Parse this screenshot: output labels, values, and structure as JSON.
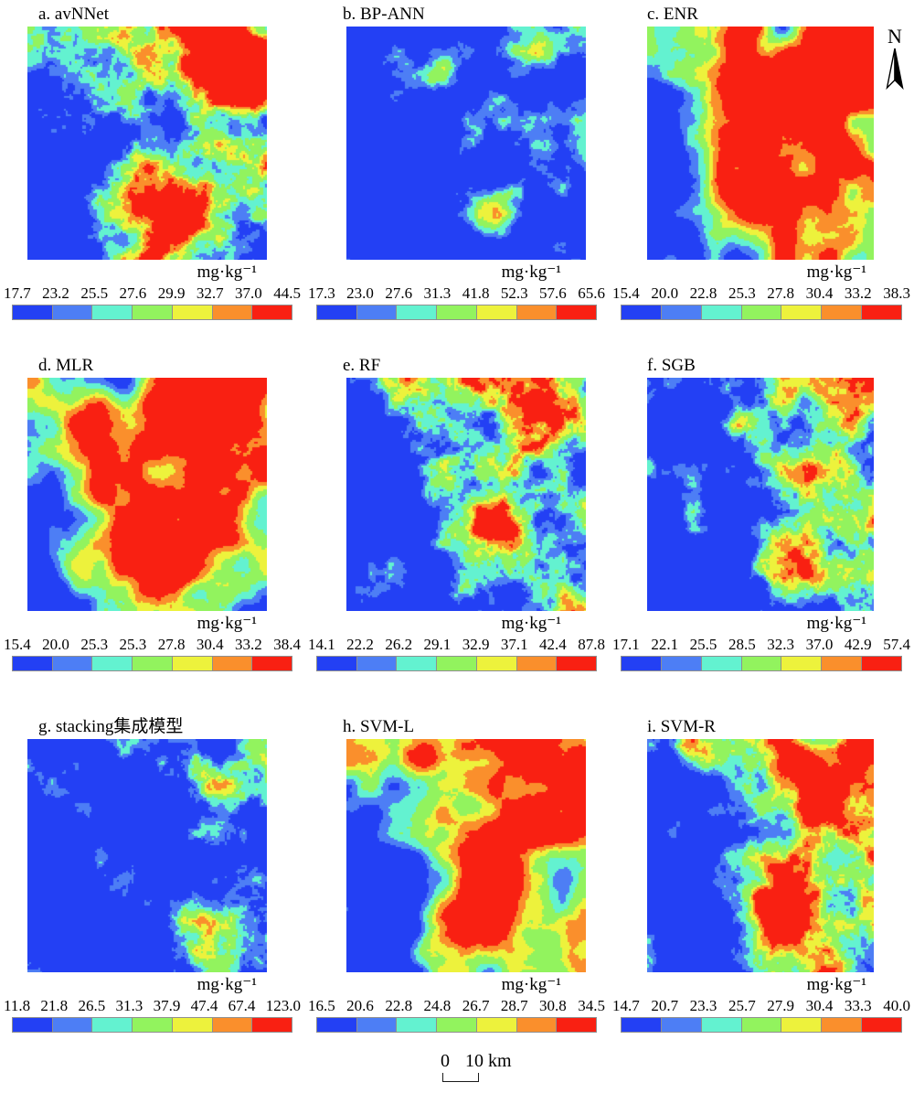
{
  "figure": {
    "unit_label": "mg·kg⁻¹",
    "north_label": "N",
    "scalebar": {
      "zero": "0",
      "label": "10 km"
    }
  },
  "colorbar_colors": [
    "#2340f4",
    "#4d7ef5",
    "#63f2d0",
    "#92f35e",
    "#edf23c",
    "#fa8f2c",
    "#f92012"
  ],
  "panels": [
    {
      "id": "a",
      "title": "a. avNNet",
      "breaks": [
        "17.7",
        "23.2",
        "25.5",
        "27.6",
        "29.9",
        "32.7",
        "37.0",
        "44.5"
      ]
    },
    {
      "id": "b",
      "title": "b. BP-ANN",
      "breaks": [
        "17.3",
        "23.0",
        "27.6",
        "31.3",
        "41.8",
        "52.3",
        "57.6",
        "65.6"
      ]
    },
    {
      "id": "c",
      "title": "c. ENR",
      "breaks": [
        "15.4",
        "20.0",
        "22.8",
        "25.3",
        "27.8",
        "30.4",
        "33.2",
        "38.3"
      ]
    },
    {
      "id": "d",
      "title": "d. MLR",
      "breaks": [
        "15.4",
        "20.0",
        "25.3",
        "25.3",
        "27.8",
        "30.4",
        "33.2",
        "38.4"
      ]
    },
    {
      "id": "e",
      "title": "e. RF",
      "breaks": [
        "14.1",
        "22.2",
        "26.2",
        "29.1",
        "32.9",
        "37.1",
        "42.4",
        "87.8"
      ]
    },
    {
      "id": "f",
      "title": "f. SGB",
      "breaks": [
        "17.1",
        "22.1",
        "25.5",
        "28.5",
        "32.3",
        "37.0",
        "42.9",
        "57.4"
      ]
    },
    {
      "id": "g",
      "title": "g. stacking集成模型",
      "breaks": [
        "11.8",
        "21.8",
        "26.5",
        "31.3",
        "37.9",
        "47.4",
        "67.4",
        "123.0"
      ]
    },
    {
      "id": "h",
      "title": "h. SVM-L",
      "breaks": [
        "16.5",
        "20.6",
        "22.8",
        "24.8",
        "26.7",
        "28.7",
        "30.8",
        "34.5"
      ]
    },
    {
      "id": "i",
      "title": "i. SVM-R",
      "breaks": [
        "14.7",
        "20.7",
        "23.3",
        "25.7",
        "27.9",
        "30.4",
        "33.3",
        "40.0"
      ]
    }
  ]
}
